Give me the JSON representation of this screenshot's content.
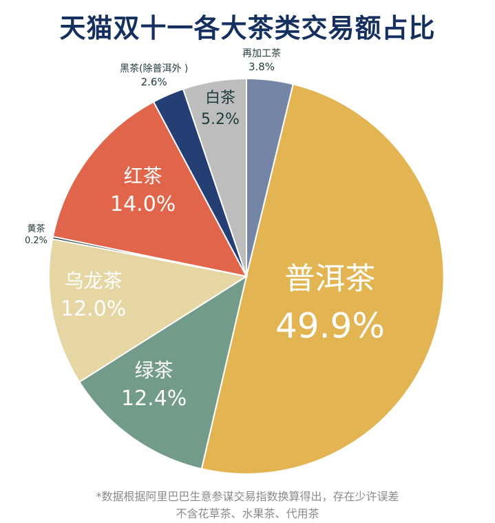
{
  "title": "天猫双十一各大茶类交易额占比",
  "chart_data": {
    "type": "pie",
    "title": "天猫双十一各大茶类交易额占比",
    "start_angle_deg": 0,
    "direction": "clockwise",
    "slices": [
      {
        "label": "再加工茶",
        "value": 3.8,
        "display": "3.8%",
        "color": "#7585a6"
      },
      {
        "label": "普洱茶",
        "value": 49.9,
        "display": "49.9%",
        "color": "#e2b552"
      },
      {
        "label": "绿茶",
        "value": 12.4,
        "display": "12.4%",
        "color": "#729b8a"
      },
      {
        "label": "乌龙茶",
        "value": 12.0,
        "display": "12.0%",
        "color": "#e5d6a4"
      },
      {
        "label": "黄茶",
        "value": 0.2,
        "display": "0.2%",
        "color": "#2a3a3a"
      },
      {
        "label": "红茶",
        "value": 14.0,
        "display": "14.0%",
        "color": "#e0654a"
      },
      {
        "label": "黑茶(除普洱外）",
        "value": 2.6,
        "display": "2.6%",
        "color": "#253f75"
      },
      {
        "label": "白茶",
        "value": 5.2,
        "display": "5.2%",
        "color": "#bdbdbd"
      }
    ]
  },
  "labels": {
    "zaijiagong": {
      "name": "再加工茶",
      "pct": "3.8%"
    },
    "puer": {
      "name": "普洱茶",
      "pct": "49.9%"
    },
    "lvcha": {
      "name": "绿茶",
      "pct": "12.4%"
    },
    "wulong": {
      "name": "乌龙茶",
      "pct": "12.0%"
    },
    "huangcha": {
      "name": "黄茶",
      "pct": "0.2%"
    },
    "hongcha": {
      "name": "红茶",
      "pct": "14.0%"
    },
    "heicha": {
      "name": "黑茶(除普洱外 )",
      "pct": "2.6%"
    },
    "baicha": {
      "name": "白茶",
      "pct": "5.2%"
    }
  },
  "footer": {
    "line1": "*数据根据阿里巴巴生意参谋交易指数换算得出，存在少许误差",
    "line2": "不含花草茶、水果茶、代用茶"
  }
}
